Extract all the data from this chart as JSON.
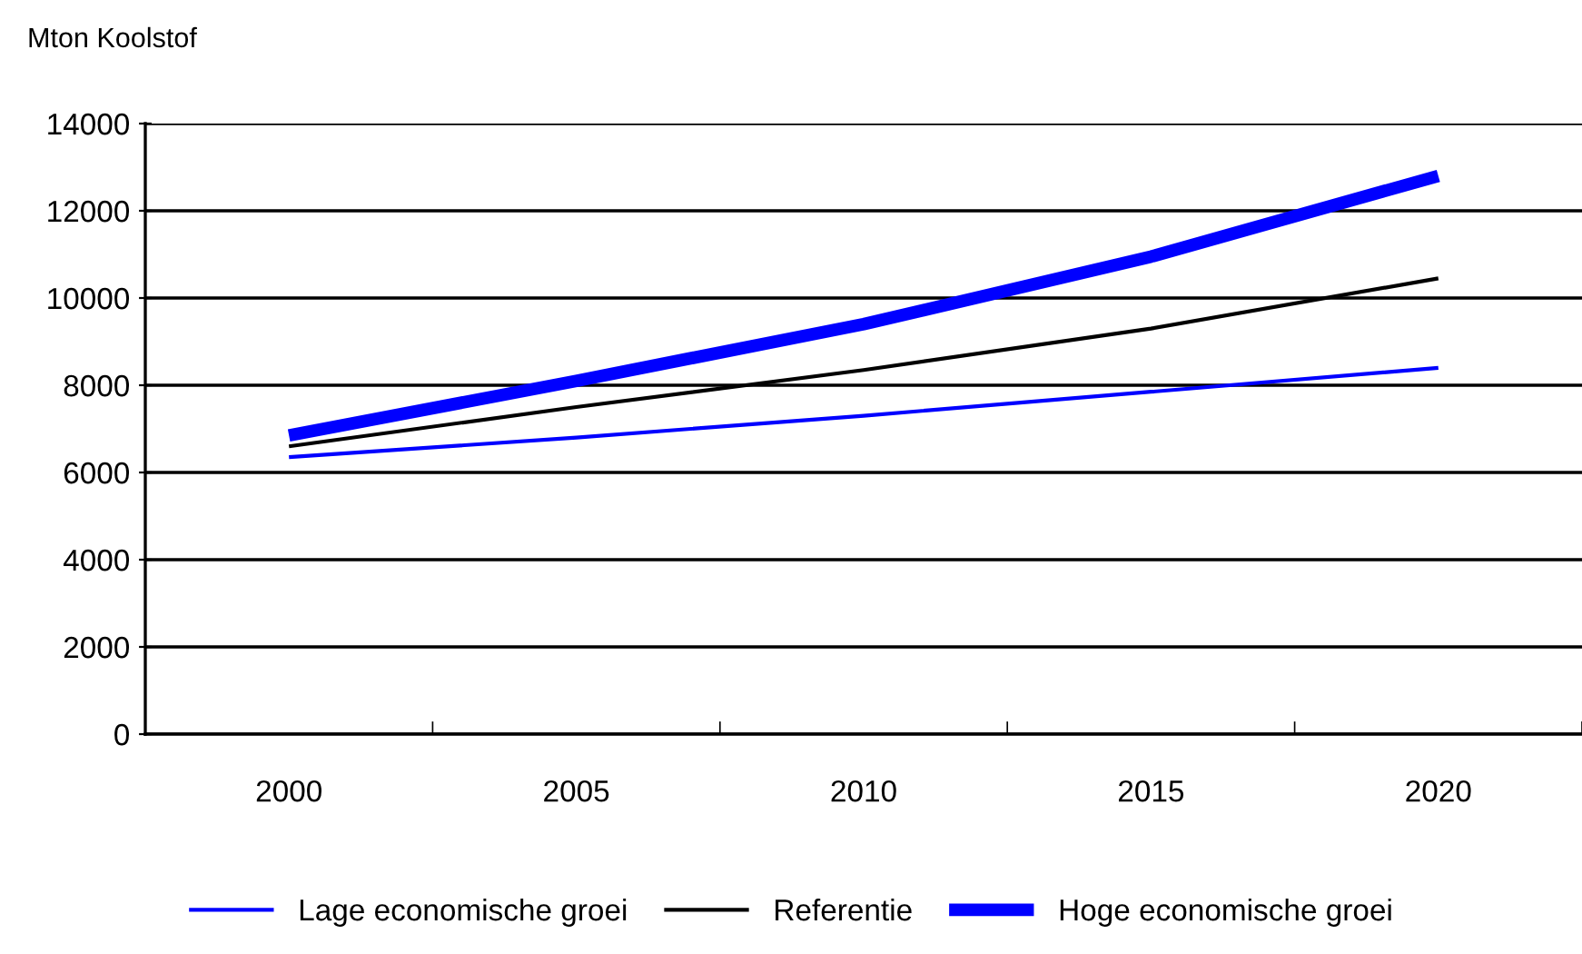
{
  "chart_data": {
    "type": "line",
    "ylabel": "Mton Koolstof",
    "categories": [
      "2000",
      "2005",
      "2010",
      "2015",
      "2020"
    ],
    "series": [
      {
        "name": "Lage economische groei",
        "color": "#0000ff",
        "values": [
          6350,
          6800,
          7300,
          7850,
          8400
        ]
      },
      {
        "name": "Referentie",
        "color": "#000000",
        "values": [
          6600,
          7500,
          8350,
          9300,
          10450
        ]
      },
      {
        "name": "Hoge economische groei",
        "color": "#0000ff",
        "values": [
          6850,
          8100,
          9400,
          10950,
          12800
        ]
      }
    ],
    "ylim": [
      0,
      14000
    ],
    "yticks": [
      0,
      2000,
      4000,
      6000,
      8000,
      10000,
      12000,
      14000
    ],
    "grid": "y",
    "legend": "bottom",
    "marker": "none",
    "line_style": "solid"
  }
}
